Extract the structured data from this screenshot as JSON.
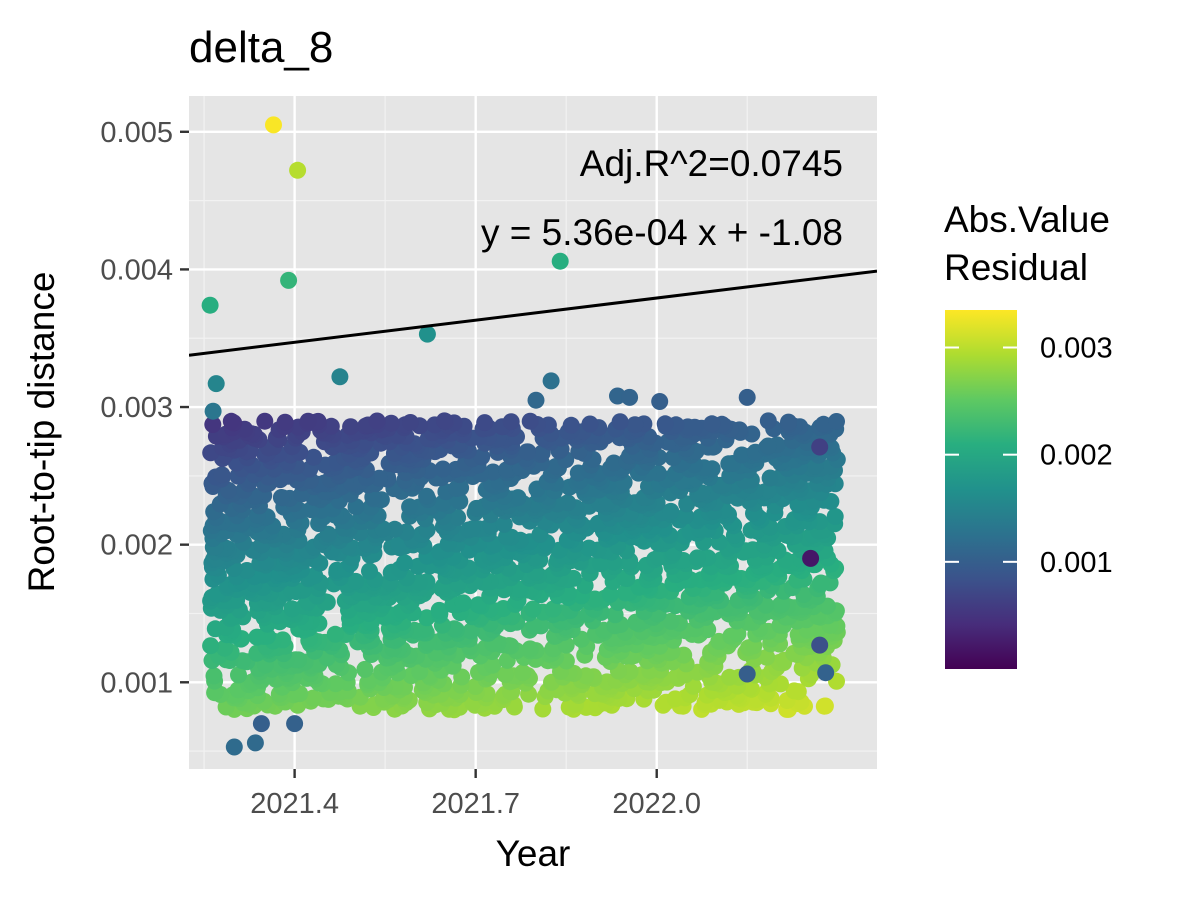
{
  "chart_data": {
    "type": "scatter",
    "title": "delta_8",
    "xlabel": "Year",
    "ylabel": "Root-to-tip distance",
    "xlim": [
      2021.225,
      2022.365
    ],
    "ylim": [
      0.00037,
      0.00526
    ],
    "x_major_ticks": [
      2021.4,
      2021.7,
      2022.0
    ],
    "x_minor_ticks": [
      2021.25,
      2021.55,
      2021.85,
      2022.15
    ],
    "x_tick_labels": [
      "2021.4",
      "2021.7",
      "2022.0"
    ],
    "y_major_ticks": [
      0.001,
      0.002,
      0.003,
      0.004,
      0.005
    ],
    "y_minor_ticks": [
      0.0005,
      0.0015,
      0.0025,
      0.0035,
      0.0045
    ],
    "y_tick_labels": [
      "0.001",
      "0.002",
      "0.003",
      "0.004",
      "0.005"
    ],
    "grid": true,
    "panel_background": "#e5e5e5",
    "regression": {
      "slope": 0.000536,
      "intercept": -1.08,
      "adj_r2_text": "Adj.R^2=0.0745",
      "equation_text": "y = 5.36e-04 x + -1.08",
      "line_color": "#000000"
    },
    "color_scale": {
      "title_lines": [
        "Abs.Value",
        "Residual"
      ],
      "palette": "viridis",
      "domain": [
        0.0,
        0.00335
      ],
      "ticks": [
        0.001,
        0.002,
        0.003
      ],
      "tick_labels": [
        "0.001",
        "0.002",
        "0.003"
      ],
      "legend_position": "right"
    },
    "highlighted_points": [
      {
        "x": 2021.365,
        "y": 0.00505,
        "residual": 0.00333
      },
      {
        "x": 2021.405,
        "y": 0.00472,
        "residual": 0.00298
      },
      {
        "x": 2021.39,
        "y": 0.00392,
        "residual": 0.00219
      },
      {
        "x": 2021.84,
        "y": 0.00406,
        "residual": 0.00209
      },
      {
        "x": 2021.26,
        "y": 0.00374,
        "residual": 0.00209
      },
      {
        "x": 2021.62,
        "y": 0.00353,
        "residual": 0.00168
      },
      {
        "x": 2021.27,
        "y": 0.00317,
        "residual": 0.00151
      },
      {
        "x": 2021.475,
        "y": 0.00322,
        "residual": 0.00148
      },
      {
        "x": 2021.265,
        "y": 0.00297,
        "residual": 0.00131
      },
      {
        "x": 2021.825,
        "y": 0.00319,
        "residual": 0.00124
      },
      {
        "x": 2021.3,
        "y": 0.00053,
        "residual": 0.00116
      },
      {
        "x": 2021.335,
        "y": 0.00056,
        "residual": 0.00115
      },
      {
        "x": 2022.005,
        "y": 0.00304,
        "residual": 0.00101
      },
      {
        "x": 2022.28,
        "y": 0.00107,
        "residual": 0.00105
      },
      {
        "x": 2022.15,
        "y": 0.00106,
        "residual": 0.00099
      },
      {
        "x": 2022.15,
        "y": 0.00307,
        "residual": 0.00101
      },
      {
        "x": 2021.935,
        "y": 0.00308,
        "residual": 0.00109
      },
      {
        "x": 2021.955,
        "y": 0.00307,
        "residual": 0.00107
      },
      {
        "x": 2021.8,
        "y": 0.00305,
        "residual": 0.00113
      },
      {
        "x": 2022.27,
        "y": 0.00271,
        "residual": 0.00063
      },
      {
        "x": 2022.255,
        "y": 0.0019,
        "residual": 0.0002
      },
      {
        "x": 2021.4,
        "y": 0.0007,
        "residual": 0.00103
      },
      {
        "x": 2021.345,
        "y": 0.0007,
        "residual": 0.00101
      },
      {
        "x": 2022.27,
        "y": 0.00127,
        "residual": 0.00082
      }
    ],
    "bulk_cloud": {
      "x_range": [
        2021.26,
        2022.3
      ],
      "upper_band_y_range": [
        0.0015,
        0.0029
      ],
      "lower_band_y_range": [
        0.0008,
        0.0015
      ],
      "note": "dense overlapping points colored by absolute residual"
    }
  }
}
